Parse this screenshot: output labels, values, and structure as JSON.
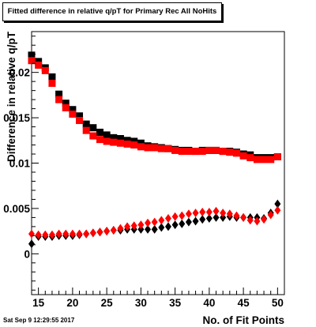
{
  "chart_data": {
    "type": "scatter",
    "title": "Fitted difference in relative q/pT for Primary Rec All NoHits",
    "xlabel": "No. of Fit Points",
    "ylabel": "Difference in relative q/pT",
    "xlim": [
      14,
      51
    ],
    "ylim": [
      -0.0045,
      0.0245
    ],
    "x_ticks": [
      15,
      20,
      25,
      30,
      35,
      40,
      45,
      50
    ],
    "x_tick_labels": [
      "15",
      "20",
      "25",
      "30",
      "35",
      "40",
      "45",
      "50"
    ],
    "y_ticks": [
      0,
      0.005,
      0.01,
      0.015,
      0.02
    ],
    "y_tick_labels": [
      "0",
      "0.005",
      "0.01",
      "0.015",
      "0.02"
    ],
    "grid": false,
    "series": [
      {
        "marker": "square",
        "color": "#000000",
        "x": [
          14,
          15,
          16,
          17,
          18,
          19,
          20,
          21,
          22,
          23,
          24,
          25,
          26,
          27,
          28,
          29,
          30,
          31,
          32,
          33,
          34,
          35,
          36,
          37,
          38,
          39,
          40,
          41,
          42,
          43,
          44,
          45,
          46,
          47,
          48,
          49,
          50
        ],
        "values": [
          0.0219,
          0.0212,
          0.0205,
          0.0195,
          0.0176,
          0.0166,
          0.0159,
          0.0152,
          0.0143,
          0.0139,
          0.0134,
          0.0131,
          0.0128,
          0.0127,
          0.0125,
          0.0124,
          0.0122,
          0.0119,
          0.0118,
          0.0117,
          0.0116,
          0.0115,
          0.0114,
          0.0114,
          0.0113,
          0.0114,
          0.0114,
          0.0114,
          0.0113,
          0.0113,
          0.0112,
          0.011,
          0.0109,
          0.0106,
          0.0106,
          0.0106,
          0.0107
        ]
      },
      {
        "marker": "square",
        "color": "#ff0000",
        "x": [
          14,
          15,
          16,
          17,
          18,
          19,
          20,
          21,
          22,
          23,
          24,
          25,
          26,
          27,
          28,
          29,
          30,
          31,
          32,
          33,
          34,
          35,
          36,
          37,
          38,
          39,
          40,
          41,
          42,
          43,
          44,
          45,
          46,
          47,
          48,
          49,
          50
        ],
        "values": [
          0.0213,
          0.0208,
          0.0202,
          0.0188,
          0.017,
          0.0161,
          0.0154,
          0.0147,
          0.0136,
          0.013,
          0.0126,
          0.0124,
          0.0123,
          0.0122,
          0.0121,
          0.012,
          0.0118,
          0.0117,
          0.0117,
          0.0116,
          0.0116,
          0.0114,
          0.0113,
          0.0113,
          0.0113,
          0.0113,
          0.0114,
          0.0114,
          0.0113,
          0.0112,
          0.0111,
          0.0108,
          0.0106,
          0.0104,
          0.0104,
          0.0104,
          0.0107
        ]
      },
      {
        "marker": "diamond",
        "color": "#000000",
        "x": [
          14,
          15,
          16,
          17,
          18,
          19,
          20,
          21,
          22,
          23,
          24,
          25,
          26,
          27,
          28,
          29,
          30,
          31,
          32,
          33,
          34,
          35,
          36,
          37,
          38,
          39,
          40,
          41,
          42,
          43,
          44,
          45,
          46,
          47,
          48,
          49,
          50
        ],
        "values": [
          0.0011,
          0.0019,
          0.0019,
          0.0019,
          0.002,
          0.002,
          0.002,
          0.0021,
          0.0022,
          0.0023,
          0.0024,
          0.0025,
          0.0026,
          0.0026,
          0.0027,
          0.0027,
          0.0027,
          0.0027,
          0.0027,
          0.0029,
          0.003,
          0.0032,
          0.0033,
          0.0035,
          0.0036,
          0.0038,
          0.0039,
          0.004,
          0.004,
          0.0041,
          0.004,
          0.004,
          0.004,
          0.004,
          0.0039,
          0.0045,
          0.0055
        ]
      },
      {
        "marker": "diamond",
        "color": "#ff0000",
        "x": [
          14,
          15,
          16,
          17,
          18,
          19,
          20,
          21,
          22,
          23,
          24,
          25,
          26,
          27,
          28,
          29,
          30,
          31,
          32,
          33,
          34,
          35,
          36,
          37,
          38,
          39,
          40,
          41,
          42,
          43,
          44,
          45,
          46,
          47,
          48,
          49,
          50
        ],
        "values": [
          0.0022,
          0.0021,
          0.0021,
          0.0021,
          0.0022,
          0.0022,
          0.0022,
          0.0022,
          0.0022,
          0.0023,
          0.0024,
          0.0025,
          0.0026,
          0.0028,
          0.003,
          0.0031,
          0.0032,
          0.0034,
          0.0035,
          0.0037,
          0.0039,
          0.0041,
          0.0042,
          0.0044,
          0.0045,
          0.0046,
          0.0046,
          0.0047,
          0.0045,
          0.0044,
          0.0042,
          0.004,
          0.0037,
          0.0036,
          0.0038,
          0.0043,
          0.0048
        ]
      }
    ]
  },
  "footer": {
    "timestamp": "Sat Sep  9 12:29:55 2017"
  }
}
